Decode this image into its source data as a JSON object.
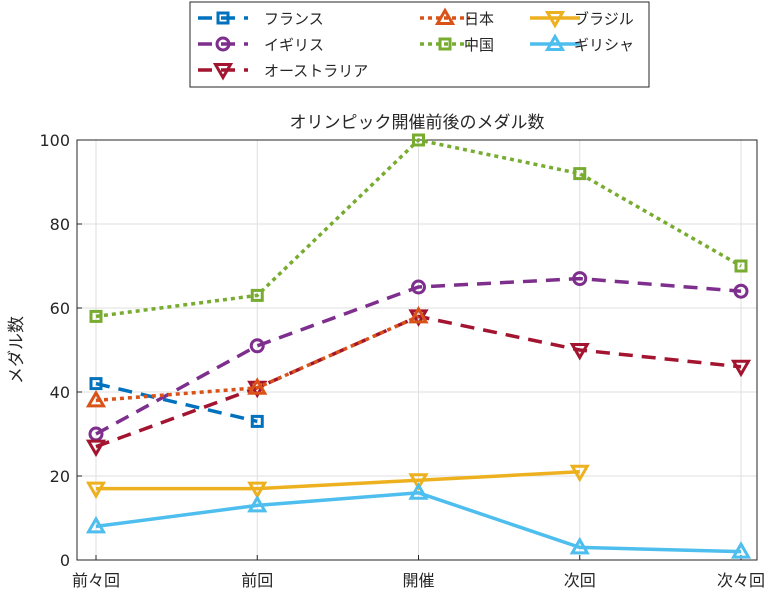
{
  "chart_data": {
    "type": "line",
    "title": "オリンピック開催前後のメダル数",
    "xlabel": "",
    "ylabel": "メダル数",
    "categories": [
      "前々回",
      "前回",
      "開催",
      "次回",
      "次々回"
    ],
    "ylim": [
      0,
      100
    ],
    "yticks": [
      0,
      20,
      40,
      60,
      80,
      100
    ],
    "grid": true,
    "legend": "top-outside",
    "series": [
      {
        "name": "フランス",
        "values": [
          42,
          33,
          null,
          null,
          null
        ],
        "color": "#0072BD",
        "style": "dashed",
        "marker": "square"
      },
      {
        "name": "イギリス",
        "values": [
          30,
          51,
          65,
          67,
          64
        ],
        "color": "#7E2F8E",
        "style": "dashed",
        "marker": "circle"
      },
      {
        "name": "オーストラリア",
        "values": [
          27,
          41,
          58,
          50,
          46
        ],
        "color": "#A2142F",
        "style": "dashed",
        "marker": "triangle-down"
      },
      {
        "name": "日本",
        "values": [
          38,
          41,
          58,
          null,
          null
        ],
        "color": "#D95319",
        "style": "dotted",
        "marker": "triangle-up"
      },
      {
        "name": "中国",
        "values": [
          58,
          63,
          100,
          92,
          70
        ],
        "color": "#77AC30",
        "style": "dotted",
        "marker": "square"
      },
      {
        "name": "ブラジル",
        "values": [
          17,
          17,
          19,
          21,
          null
        ],
        "color": "#EDB120",
        "style": "solid",
        "marker": "triangle-down"
      },
      {
        "name": "ギリシャ",
        "values": [
          8,
          13,
          16,
          3,
          2
        ],
        "color": "#4DBEEE",
        "style": "solid",
        "marker": "triangle-up"
      }
    ]
  }
}
